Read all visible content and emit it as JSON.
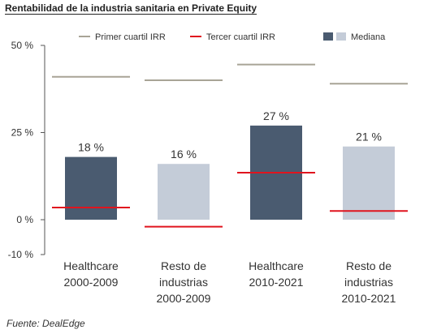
{
  "title": "Rentabilidad de la industria sanitaria en Private Equity",
  "source": "Fuente: DealEdge",
  "colors": {
    "healthcare_bar": "#4a5b70",
    "rest_bar": "#c4ccd8",
    "first_quartile": "#a8a496",
    "third_quartile": "#e0141e",
    "axis": "#555555",
    "text": "#333333"
  },
  "chart_data": {
    "type": "bar",
    "title": "Rentabilidad de la industria sanitaria en Private Equity",
    "ylim": [
      -10,
      50
    ],
    "yticks": [
      -10,
      0,
      25,
      50
    ],
    "ytick_labels": [
      "-10 %",
      "0 %",
      "25 %",
      "50 %"
    ],
    "categories": [
      [
        "Healthcare",
        "2000-2009"
      ],
      [
        "Resto de",
        "industrias",
        "2000-2009"
      ],
      [
        "Healthcare",
        "2010-2021"
      ],
      [
        "Resto de",
        "industrias",
        "2010-2021"
      ]
    ],
    "series": [
      {
        "name": "Primer cuartil IRR",
        "kind": "line-marker",
        "values": [
          41,
          40,
          44.5,
          39
        ]
      },
      {
        "name": "Tercer cuartil IRR",
        "kind": "line-marker",
        "values": [
          3.5,
          -2,
          13.5,
          2.5
        ]
      },
      {
        "name": "Mediana",
        "kind": "bar",
        "values": [
          18,
          16,
          27,
          21
        ]
      }
    ],
    "bar_labels": [
      "18 %",
      "16 %",
      "27 %",
      "21 %"
    ],
    "bar_colors": [
      "healthcare",
      "rest",
      "healthcare",
      "rest"
    ],
    "legend": [
      "Primer cuartil IRR",
      "Tercer cuartil IRR",
      "Mediana"
    ],
    "legend_position": "top",
    "grid": false
  }
}
